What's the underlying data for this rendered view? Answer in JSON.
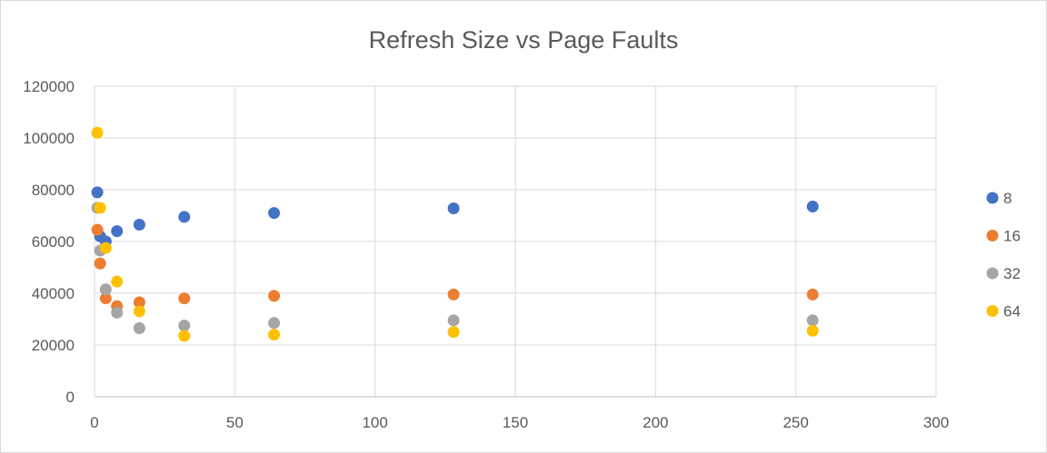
{
  "chart_data": {
    "type": "scatter",
    "title": "Refresh Size vs Page Faults",
    "xlabel": "",
    "ylabel": "",
    "xlim": [
      0,
      300
    ],
    "ylim": [
      0,
      120000
    ],
    "x_ticks": [
      0,
      50,
      100,
      150,
      200,
      250,
      300
    ],
    "y_ticks": [
      0,
      20000,
      40000,
      60000,
      80000,
      100000,
      120000
    ],
    "grid": true,
    "legend_position": "right",
    "series": [
      {
        "name": "8",
        "color": "#4472C4",
        "points": [
          [
            1,
            79000
          ],
          [
            2,
            62000
          ],
          [
            4,
            60000
          ],
          [
            8,
            64000
          ],
          [
            16,
            66500
          ],
          [
            32,
            69500
          ],
          [
            64,
            71000
          ],
          [
            128,
            72800
          ],
          [
            256,
            73500
          ]
        ]
      },
      {
        "name": "16",
        "color": "#ED7D31",
        "points": [
          [
            1,
            64500
          ],
          [
            2,
            51500
          ],
          [
            4,
            38000
          ],
          [
            8,
            35000
          ],
          [
            16,
            36500
          ],
          [
            32,
            38000
          ],
          [
            64,
            39000
          ],
          [
            128,
            39500
          ],
          [
            256,
            39500
          ]
        ]
      },
      {
        "name": "32",
        "color": "#A5A5A5",
        "points": [
          [
            1,
            73000
          ],
          [
            2,
            56500
          ],
          [
            4,
            41500
          ],
          [
            8,
            32500
          ],
          [
            16,
            26500
          ],
          [
            32,
            27500
          ],
          [
            64,
            28500
          ],
          [
            128,
            29500
          ],
          [
            256,
            29500
          ]
        ]
      },
      {
        "name": "64",
        "color": "#FFC000",
        "points": [
          [
            1,
            102000
          ],
          [
            2,
            73000
          ],
          [
            4,
            57500
          ],
          [
            8,
            44500
          ],
          [
            16,
            33000
          ],
          [
            32,
            23500
          ],
          [
            64,
            24000
          ],
          [
            128,
            25000
          ],
          [
            256,
            25500
          ]
        ]
      }
    ]
  }
}
